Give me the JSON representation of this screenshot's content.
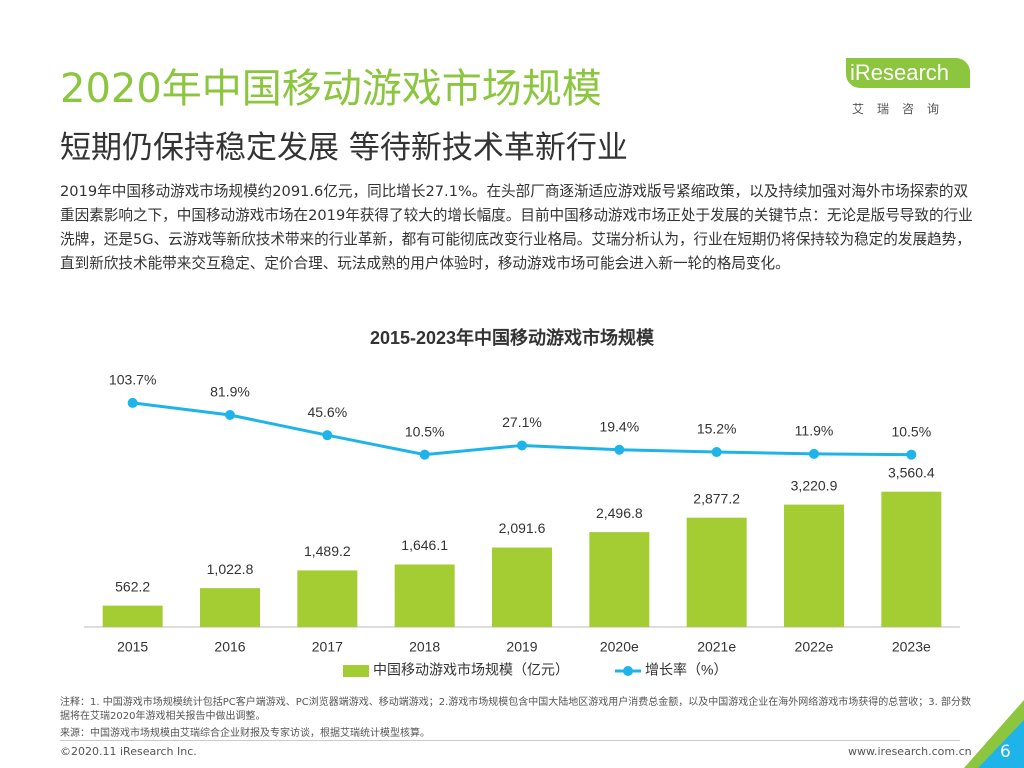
{
  "header": {
    "title": "2020年中国移动游戏市场规模",
    "subtitle": "短期仍保持稳定发展 等待新技术革新行业",
    "logo": "iResearch",
    "logo_sub": "艾瑞咨询"
  },
  "body": "2019年中国移动游戏市场规模约2091.6亿元，同比增长27.1%。在头部厂商逐渐适应游戏版号紧缩政策，以及持续加强对海外市场探索的双重因素影响之下，中国移动游戏市场在2019年获得了较大的增长幅度。目前中国移动游戏市场正处于发展的关键节点：无论是版号导致的行业洗牌，还是5G、云游戏等新欣技术带来的行业革新，都有可能彻底改变行业格局。艾瑞分析认为，行业在短期仍将保持较为稳定的发展趋势，直到新欣技术能带来交互稳定、定价合理、玩法成熟的用户体验时，移动游戏市场可能会进入新一轮的格局变化。",
  "chart_data": {
    "type": "bar",
    "title": "2015-2023年中国移动游戏市场规模",
    "categories": [
      "2015",
      "2016",
      "2017",
      "2018",
      "2019",
      "2020e",
      "2021e",
      "2022e",
      "2023e"
    ],
    "series": [
      {
        "name": "中国移动游戏市场规模（亿元）",
        "type": "bar",
        "color": "#a3cd32",
        "values": [
          562.2,
          1022.8,
          1489.2,
          1646.1,
          2091.6,
          2496.8,
          2877.2,
          3220.9,
          3560.4
        ],
        "value_labels": [
          "562.2",
          "1,022.8",
          "1,489.2",
          "1,646.1",
          "2,091.6",
          "2,496.8",
          "2,877.2",
          "3,220.9",
          "3,560.4"
        ]
      },
      {
        "name": "增长率（%）",
        "type": "line",
        "axis": "y2",
        "color": "#1eb4ea",
        "values": [
          103.7,
          81.9,
          45.6,
          10.5,
          27.1,
          19.4,
          15.2,
          11.9,
          10.5
        ],
        "value_labels": [
          "103.7%",
          "81.9%",
          "45.6%",
          "10.5%",
          "27.1%",
          "19.4%",
          "15.2%",
          "11.9%",
          "10.5%"
        ]
      }
    ],
    "ylim": [
      0,
      6500
    ],
    "y2lim": [
      -300,
      145
    ],
    "legend": "bottom"
  },
  "notes": "注释：1. 中国游戏市场规模统计包括PC客户端游戏、PC浏览器端游戏、移动端游戏；2.游戏市场规模包含中国大陆地区游戏用户消费总金额，以及中国游戏企业在海外网络游戏市场获得的总营收；3. 部分数据将在艾瑞2020年游戏相关报告中做出调整。",
  "source": "来源：中国游戏市场规模由艾瑞综合企业财报及专家访谈，根据艾瑞统计模型核算。",
  "footer": {
    "copyright": "©2020.11 iResearch Inc.",
    "url": "www.iresearch.com.cn",
    "page": "6"
  }
}
